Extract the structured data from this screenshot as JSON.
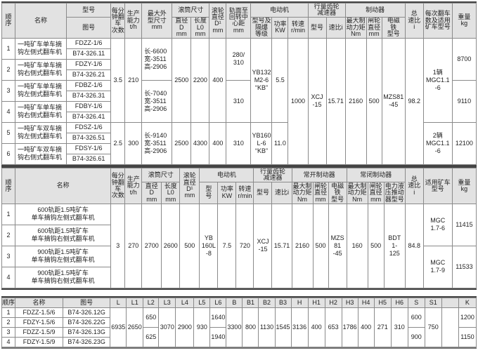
{
  "t1": {
    "h": {
      "seq": "顺\n序",
      "name": "名称",
      "model": "型号",
      "drawing": "图号",
      "tips": "每分\n钟翻\n车\n次数",
      "capacity": "生产\n能力\nt/h",
      "outline": "最大外\n型尺寸\nmm",
      "drum": "滚筒尺寸",
      "drum_d": "直径\nD\nmm",
      "drum_l": "长度\nL0\nmm",
      "roller": "滚轮\n直径\nD¹\nmm",
      "track": "轨面至\n回转中\n心距\nmm",
      "motor": "电动机",
      "motor_model": "型号及\n隔爆\n等级",
      "power": "功率\nKW",
      "rpm": "转速\nr/min",
      "reducer": "行量齿轮\n减速器",
      "red_model": "型号",
      "ratio": "速比i",
      "brake": "制动器",
      "torque": "最大制\n动力矩\nNm",
      "wheel": "闸轮\n直径\nmm",
      "magnet": "电磁\n铁\n型号",
      "total": "总\n速比\ni",
      "cars": "每次翻车\n数及适用\n矿车型号",
      "weight": "重量\nkg"
    },
    "rows": [
      {
        "seq": "1",
        "name": "一吨矿车单车摘\n钩左侧式翻车机",
        "model": "FDZZ-1/6",
        "drawing": "B74-326.11"
      },
      {
        "seq": "2",
        "name": "一吨矿车单车摘\n钩右侧式翻车机",
        "model": "FDZY-1/6",
        "drawing": "B74-326.21"
      },
      {
        "seq": "3",
        "name": "一吨矿车单车摘\n钩左侧式翻车机",
        "model": "FDBZ-1/6",
        "drawing": "B74-326.31"
      },
      {
        "seq": "4",
        "name": "一吨矿车单车摘\n钩右侧式翻车机",
        "model": "FDBY-1/6",
        "drawing": "B74-326.41"
      },
      {
        "seq": "5",
        "name": "一吨矿车双车摘\n钩左侧式翻车机",
        "model": "FDSZ-1/6",
        "drawing": "B74-326.51"
      },
      {
        "seq": "6",
        "name": "一吨矿车双车摘\n钩右侧式翻车机",
        "model": "FDSY-1/6",
        "drawing": "B74-326.61"
      }
    ],
    "g": {
      "tips_a": "3.5",
      "cap_a": "210",
      "tips_b": "2.5",
      "cap_b": "300",
      "outline_a": "长-6600\n宽-3511\n高-2906",
      "outline_b": "长-7040\n宽-3511\n高-2906",
      "outline_c": "长-9140\n宽-3511\n高-2906",
      "d_a": "2500",
      "l_a": "2200",
      "r_a": "400",
      "d_b": "2500",
      "l_b": "4300",
      "r_b": "400",
      "track_a": "280/\n310",
      "track_b": "310",
      "track_c": "310",
      "motor_a": "YB132\nM2-6\n“KB”",
      "power_a": "5.5",
      "motor_b": "YB160\nL-6\n“KB”",
      "power_b": "11.0",
      "rpm": "1000",
      "red_model": "XCJ\n-15",
      "ratio": "15.71",
      "torque": "2160",
      "wheel": "500",
      "magnet": "MZS81\n-45",
      "total": "98.2",
      "cars_a": "1辆\nMGC1.1\n-6",
      "cars_b": "2辆\nMGC1.1\n-6",
      "w_a": "8700",
      "w_b": "9110",
      "w_c": "12100"
    }
  },
  "t2": {
    "h": {
      "seq": "顺\n序",
      "name": "名称",
      "tips": "每分\n钟翻\n车\n次数",
      "capacity": "生产\n能力\nt/h",
      "drum": "滚筒尺寸",
      "drum_d": "直径\nD\nmm",
      "drum_l": "长度\nL0\nmm",
      "roller": "滚轮\n直径\nD¹\nmm",
      "motor": "电动机",
      "motor_model": "型\n号",
      "power": "功率\nKW",
      "rpm": "转速\nr/min",
      "reducer": "行量齿轮\n减速器",
      "red_model": "型号",
      "ratio": "速比i",
      "open_brake": "常开制动器",
      "o_torque": "最大制\n动力矩\nNm",
      "o_wheel": "闸轮\n直径\nmm",
      "o_magnet": "电磁\n铁\n型号",
      "closed_brake": "常闭制动器",
      "c_torque": "最大制\n动力矩\nNm",
      "c_wheel": "闸轮\n直径\nmm",
      "c_pusher": "电力液\n压推动\n器型号",
      "total": "总\n速比\ni",
      "cars": "适用矿车\n型号",
      "weight": "重量\nkg"
    },
    "rows": [
      {
        "seq": "1",
        "name": "600轨距1.5吨矿车\n单车摘钩左侧式翻车机"
      },
      {
        "seq": "2",
        "name": "600轨距1.5吨矿车\n单车摘钩右侧式翻车机"
      },
      {
        "seq": "3",
        "name": "900轨距1.5吨矿车\n单车摘钩左侧式翻车机"
      },
      {
        "seq": "4",
        "name": "900轨距1.5吨矿车\n单车摘钩右侧式翻车机"
      }
    ],
    "g": {
      "tips": "3",
      "capacity": "270",
      "drum_d": "2700",
      "drum_l": "2600",
      "roller": "500",
      "motor": "YB\n160L\n-8",
      "power": "7.5",
      "rpm": "720",
      "red_model": "XCJ\n-15",
      "ratio": "15.71",
      "o_torque": "2160",
      "o_wheel": "500",
      "o_magnet": "MZS\n81\n-45",
      "c_torque": "160",
      "c_wheel": "500",
      "c_pusher": "BDT\n1-\n125",
      "total": "84.8",
      "cars_a": "MGC\n1.7-6",
      "cars_b": "MGC\n1.7-9",
      "w_a": "11415",
      "w_b": "11533"
    }
  },
  "t3": {
    "h": [
      "顺序",
      "名称",
      "图号",
      "L",
      "L1",
      "L2",
      "L3",
      "L4",
      "L5",
      "L6",
      "B",
      "B1",
      "B2",
      "B3",
      "H",
      "H1",
      "H2",
      "H3",
      "H4",
      "H5",
      "H6",
      "S",
      "S1",
      "",
      "K"
    ],
    "rows": [
      {
        "seq": "1",
        "name": "FDZZ-1.5/6",
        "drawing": "B74-326.12G"
      },
      {
        "seq": "2",
        "name": "FDZY-1.5/6",
        "drawing": "B74-326.22G"
      },
      {
        "seq": "3",
        "name": "FDZZ-1.5/9",
        "drawing": "B74-326.13G"
      },
      {
        "seq": "4",
        "name": "FDZY-1.5/9",
        "drawing": "B74-326.23G"
      }
    ],
    "g": {
      "L": "6935",
      "L1": "2650",
      "L2_a": "650",
      "L2_b": "625",
      "L3": "3070",
      "L4": "2900",
      "L5": "930",
      "L6_a": "1640",
      "L6_b": "1940",
      "B": "3300",
      "B1": "800",
      "B2": "1130",
      "B3": "1545",
      "H": "3136",
      "H1": "400",
      "H2": "653",
      "H3": "1786",
      "H4": "400",
      "H5": "271",
      "H6": "310",
      "S_a": "600",
      "S_b": "900",
      "S1": "750",
      "K_a": "1200",
      "K_b": "1150"
    }
  }
}
